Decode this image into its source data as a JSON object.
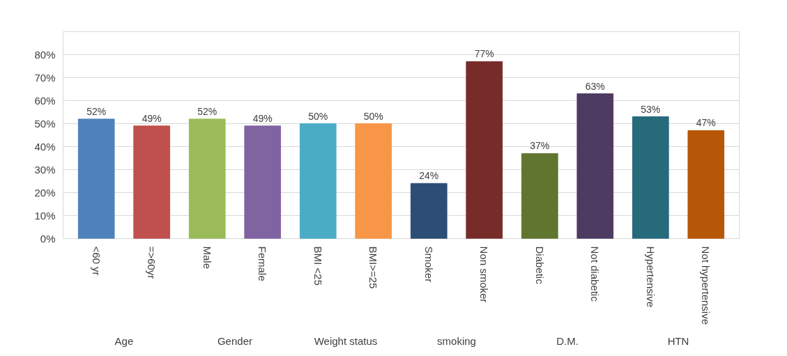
{
  "chart_data": {
    "type": "bar",
    "categories": [
      "<60 yr",
      "=>60yr",
      "Male",
      "Female",
      "BMI <25",
      "BMI>=25",
      "Smoker",
      "Non smoker",
      "Diabetic",
      "Not diabetic",
      "Hypertensive",
      "Not hypertensive"
    ],
    "values": [
      52,
      49,
      52,
      49,
      50,
      50,
      24,
      77,
      37,
      63,
      53,
      47
    ],
    "value_labels": [
      "52%",
      "49%",
      "52%",
      "49%",
      "50%",
      "50%",
      "24%",
      "77%",
      "37%",
      "63%",
      "53%",
      "47%"
    ],
    "colors": [
      "#4f81bd",
      "#c0504d",
      "#9bbb59",
      "#8064a2",
      "#4bacc6",
      "#f79646",
      "#2c4d75",
      "#772c2a",
      "#5f7530",
      "#4d3b62",
      "#276a7c",
      "#b65708"
    ],
    "ylim": [
      0,
      90
    ],
    "yticks": [
      {
        "value": 0,
        "label": "0%"
      },
      {
        "value": 10,
        "label": "10%"
      },
      {
        "value": 20,
        "label": "20%"
      },
      {
        "value": 30,
        "label": "30%"
      },
      {
        "value": 40,
        "label": "40%"
      },
      {
        "value": 50,
        "label": "50%"
      },
      {
        "value": 60,
        "label": "60%"
      },
      {
        "value": 70,
        "label": "70%"
      },
      {
        "value": 80,
        "label": "80%"
      }
    ],
    "annotations": [
      "Age",
      "Gender",
      "Weight status",
      "smoking",
      "D.M.",
      "HTN"
    ],
    "grid": "y"
  }
}
